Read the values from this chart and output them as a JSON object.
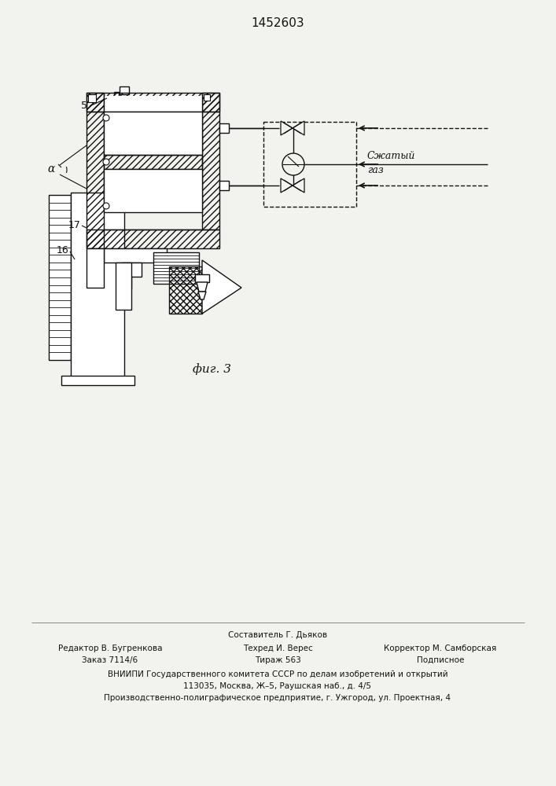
{
  "title": "1452603",
  "fig_label": "фиг. 3",
  "label_5": "5",
  "label_17": "17",
  "label_16": "16",
  "label_alpha": "α",
  "label_gas_line1": "Сжатый",
  "label_gas_line2": "газ",
  "footer_col1_line1": "Редактор В. Бугренкова",
  "footer_col1_line2": "Заказ 7114/6",
  "footer_col2_line1": "Техред И. Верес",
  "footer_col2_line2": "Тираж 563",
  "footer_col3_line1": "Корректор М. Самборская",
  "footer_col3_line2": "Подписное",
  "footer_center": "Составитель Г. Дьяков",
  "footer_vniiipi": "ВНИИПИ Государственного комитета СССР по делам изобретений и открытий",
  "footer_addr": "113035, Москва, Ж–5, Раушская наб., д. 4/5",
  "footer_plant": "Производственно-полиграфическое предприятие, г. Ужгород, ул. Проектная, 4",
  "bg_color": "#f2f2ee",
  "line_color": "#111111"
}
